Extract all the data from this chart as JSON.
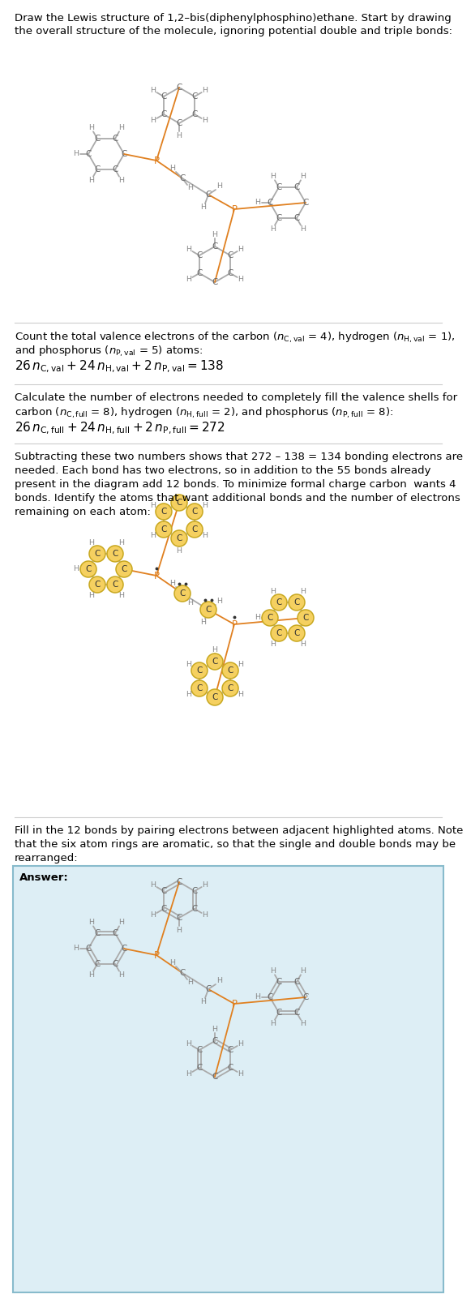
{
  "bond_color": "#aaaaaa",
  "P_color": "#e08020",
  "C_color": "#666666",
  "H_color": "#888888",
  "highlight_fill": "#f5d060",
  "highlight_edge": "#c8a820",
  "answer_bg": "#ddeef5",
  "answer_border": "#88bbcc",
  "sep_color": "#cccccc",
  "text_color": "#222222",
  "title1": "Draw the Lewis structure of 1,2–bis(diphenylphosphino)ethane. Start by drawing",
  "title2": "the overall structure of the molecule, ignoring potential double and triple bonds:",
  "s2_l1": "Count the total valence electrons of the carbon (",
  "s2_l1b": " = 4), hydrogen (",
  "s2_l2": "and phosphorus (",
  "s2_l2b": " = 5) atoms:",
  "s3_l1": "Calculate the number of electrons needed to completely fill the valence shells for",
  "s3_l2": "carbon (",
  "s3_l2b": " = 8), hydrogen (",
  "s3_l2c": " = 2), and phosphorus (",
  "s3_l2d": " = 8):",
  "s4_l1": "Subtracting these two numbers shows that 272 – 138 = 134 bonding electrons are",
  "s4_l2": "needed. Each bond has two electrons, so in addition to the 55 bonds already",
  "s4_l3": "present in the diagram add 12 bonds. To minimize formal charge carbon  wants 4",
  "s4_l4": "bonds. Identify the atoms that want additional bonds and the number of electrons",
  "s4_l5": "remaining on each atom:",
  "s5_l1": "Fill in the 12 bonds by pairing electrons between adjacent highlighted atoms. Note",
  "s5_l2": "that the six atom rings are aromatic, so that the single and double bonds may be",
  "s5_l3": "rearranged:",
  "answer_label": "Answer:"
}
